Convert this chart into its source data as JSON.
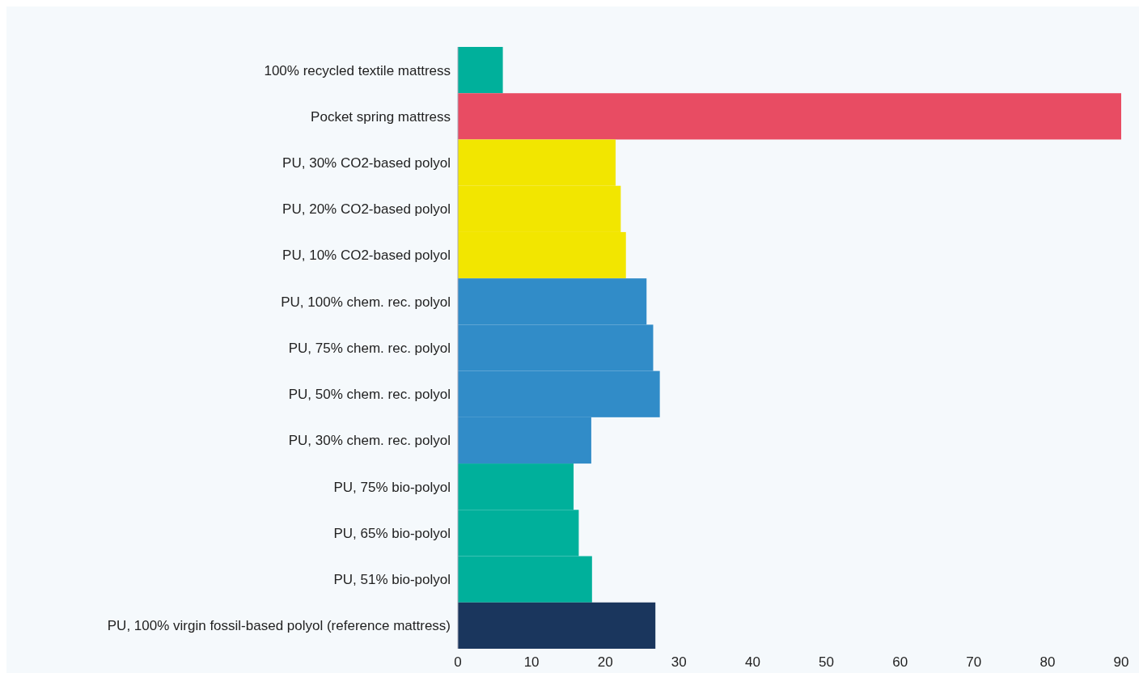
{
  "chart_data": {
    "type": "bar",
    "orientation": "horizontal",
    "categories": [
      "100% recycled textile mattress",
      "Pocket spring mattress",
      "PU, 30% CO2-based polyol",
      "PU, 20% CO2-based polyol",
      "PU, 10% CO2-based polyol",
      "PU, 100% chem. rec. polyol",
      "PU, 75% chem. rec. polyol",
      "PU, 50% chem. rec. polyol",
      "PU, 30% chem. rec. polyol",
      "PU, 75% bio-polyol",
      "PU, 65% bio-polyol",
      "PU, 51% bio-polyol",
      "PU, 100% virgin fossil-based polyol (reference mattress)"
    ],
    "values": [
      6.1,
      90,
      21.4,
      22.1,
      22.8,
      25.6,
      26.5,
      27.4,
      18.1,
      15.7,
      16.4,
      18.2,
      26.8
    ],
    "colors": [
      "#00b09b",
      "#e84c63",
      "#f2e600",
      "#f2e600",
      "#f2e600",
      "#318cc8",
      "#318cc8",
      "#318cc8",
      "#318cc8",
      "#00b09b",
      "#00b09b",
      "#00b09b",
      "#1a365d"
    ],
    "xlim": [
      0,
      90
    ],
    "xticks": [
      0,
      10,
      20,
      30,
      40,
      50,
      60,
      70,
      80,
      90
    ]
  }
}
